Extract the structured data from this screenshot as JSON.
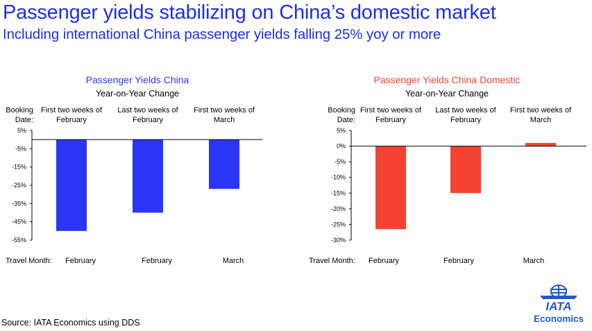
{
  "header": {
    "title": "Passenger yields stabilizing on China’s domestic market",
    "subtitle": "Including international China passenger yields falling 25% yoy or more"
  },
  "chart_data": [
    {
      "type": "bar",
      "title": "Passenger Yields China",
      "subtitle": "Year-on-Year Change",
      "color": "#2b35f5",
      "booking_label": "Booking Date:",
      "booking_dates": [
        "First two weeks of February",
        "Last two weeks of February",
        "First two weeks of March"
      ],
      "travel_label": "Travel Month:",
      "categories": [
        "February",
        "February",
        "March"
      ],
      "values": [
        -50,
        -40,
        -27
      ],
      "ylim": [
        -55,
        5
      ],
      "yticks": [
        5,
        -5,
        -15,
        -25,
        -35,
        -45,
        -55
      ],
      "ytick_labels": [
        "5%",
        "-5%",
        "-15%",
        "-25%",
        "-35%",
        "-45%",
        "-55%"
      ]
    },
    {
      "type": "bar",
      "title": "Passenger Yields China Domestic",
      "subtitle": "Year-on-Year Change",
      "color": "#f44232",
      "booking_label": "Booking Date:",
      "booking_dates": [
        "First two weeks of February",
        "Last two weeks of February",
        "First two weeks of March"
      ],
      "travel_label": "Travel Month:",
      "categories": [
        "February",
        "February",
        "March"
      ],
      "values": [
        -26.5,
        -15,
        1
      ],
      "ylim": [
        -30,
        5
      ],
      "yticks": [
        5,
        0,
        -5,
        -10,
        -15,
        -20,
        -25,
        -30
      ],
      "ytick_labels": [
        "5%",
        "0%",
        "-5%",
        "-10%",
        "-15%",
        "-20%",
        "-25%",
        "-30%"
      ]
    }
  ],
  "footer": {
    "source": "Source: IATA Economics using DDS",
    "logo_name": "IATA",
    "logo_sub": "Economics",
    "logo_color": "#1e5bc6"
  }
}
